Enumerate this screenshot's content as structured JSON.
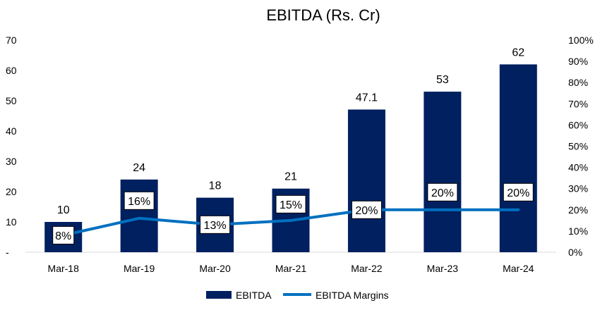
{
  "chart_data": {
    "type": "bar",
    "title": "EBITDA (Rs. Cr)",
    "categories": [
      "Mar-18",
      "Mar-19",
      "Mar-20",
      "Mar-21",
      "Mar-22",
      "Mar-23",
      "Mar-24"
    ],
    "series": [
      {
        "name": "EBITDA",
        "type": "bar",
        "axis": "left",
        "values": [
          10,
          24,
          18,
          21,
          47.1,
          53,
          62
        ],
        "data_labels": [
          "10",
          "24",
          "18",
          "21",
          "47.1",
          "53",
          "62"
        ],
        "color": "#002060"
      },
      {
        "name": "EBITDA Margins",
        "type": "line",
        "axis": "right",
        "values": [
          8,
          16,
          13,
          15,
          20,
          20,
          20
        ],
        "data_labels": [
          "8%",
          "16%",
          "13%",
          "15%",
          "20%",
          "20%",
          "20%"
        ],
        "color": "#0070C0"
      }
    ],
    "y_left": {
      "ylim": [
        0,
        70
      ],
      "ticks": [
        0,
        10,
        20,
        30,
        40,
        50,
        60,
        70
      ],
      "tick_labels": [
        "-",
        "10",
        "20",
        "30",
        "40",
        "50",
        "60",
        "70"
      ]
    },
    "y_right": {
      "ylim": [
        0,
        100
      ],
      "ticks": [
        0,
        10,
        20,
        30,
        40,
        50,
        60,
        70,
        80,
        90,
        100
      ],
      "tick_labels": [
        "0%",
        "10%",
        "20%",
        "30%",
        "40%",
        "50%",
        "60%",
        "70%",
        "80%",
        "90%",
        "100%"
      ]
    },
    "grid": false,
    "legend_position": "bottom"
  }
}
